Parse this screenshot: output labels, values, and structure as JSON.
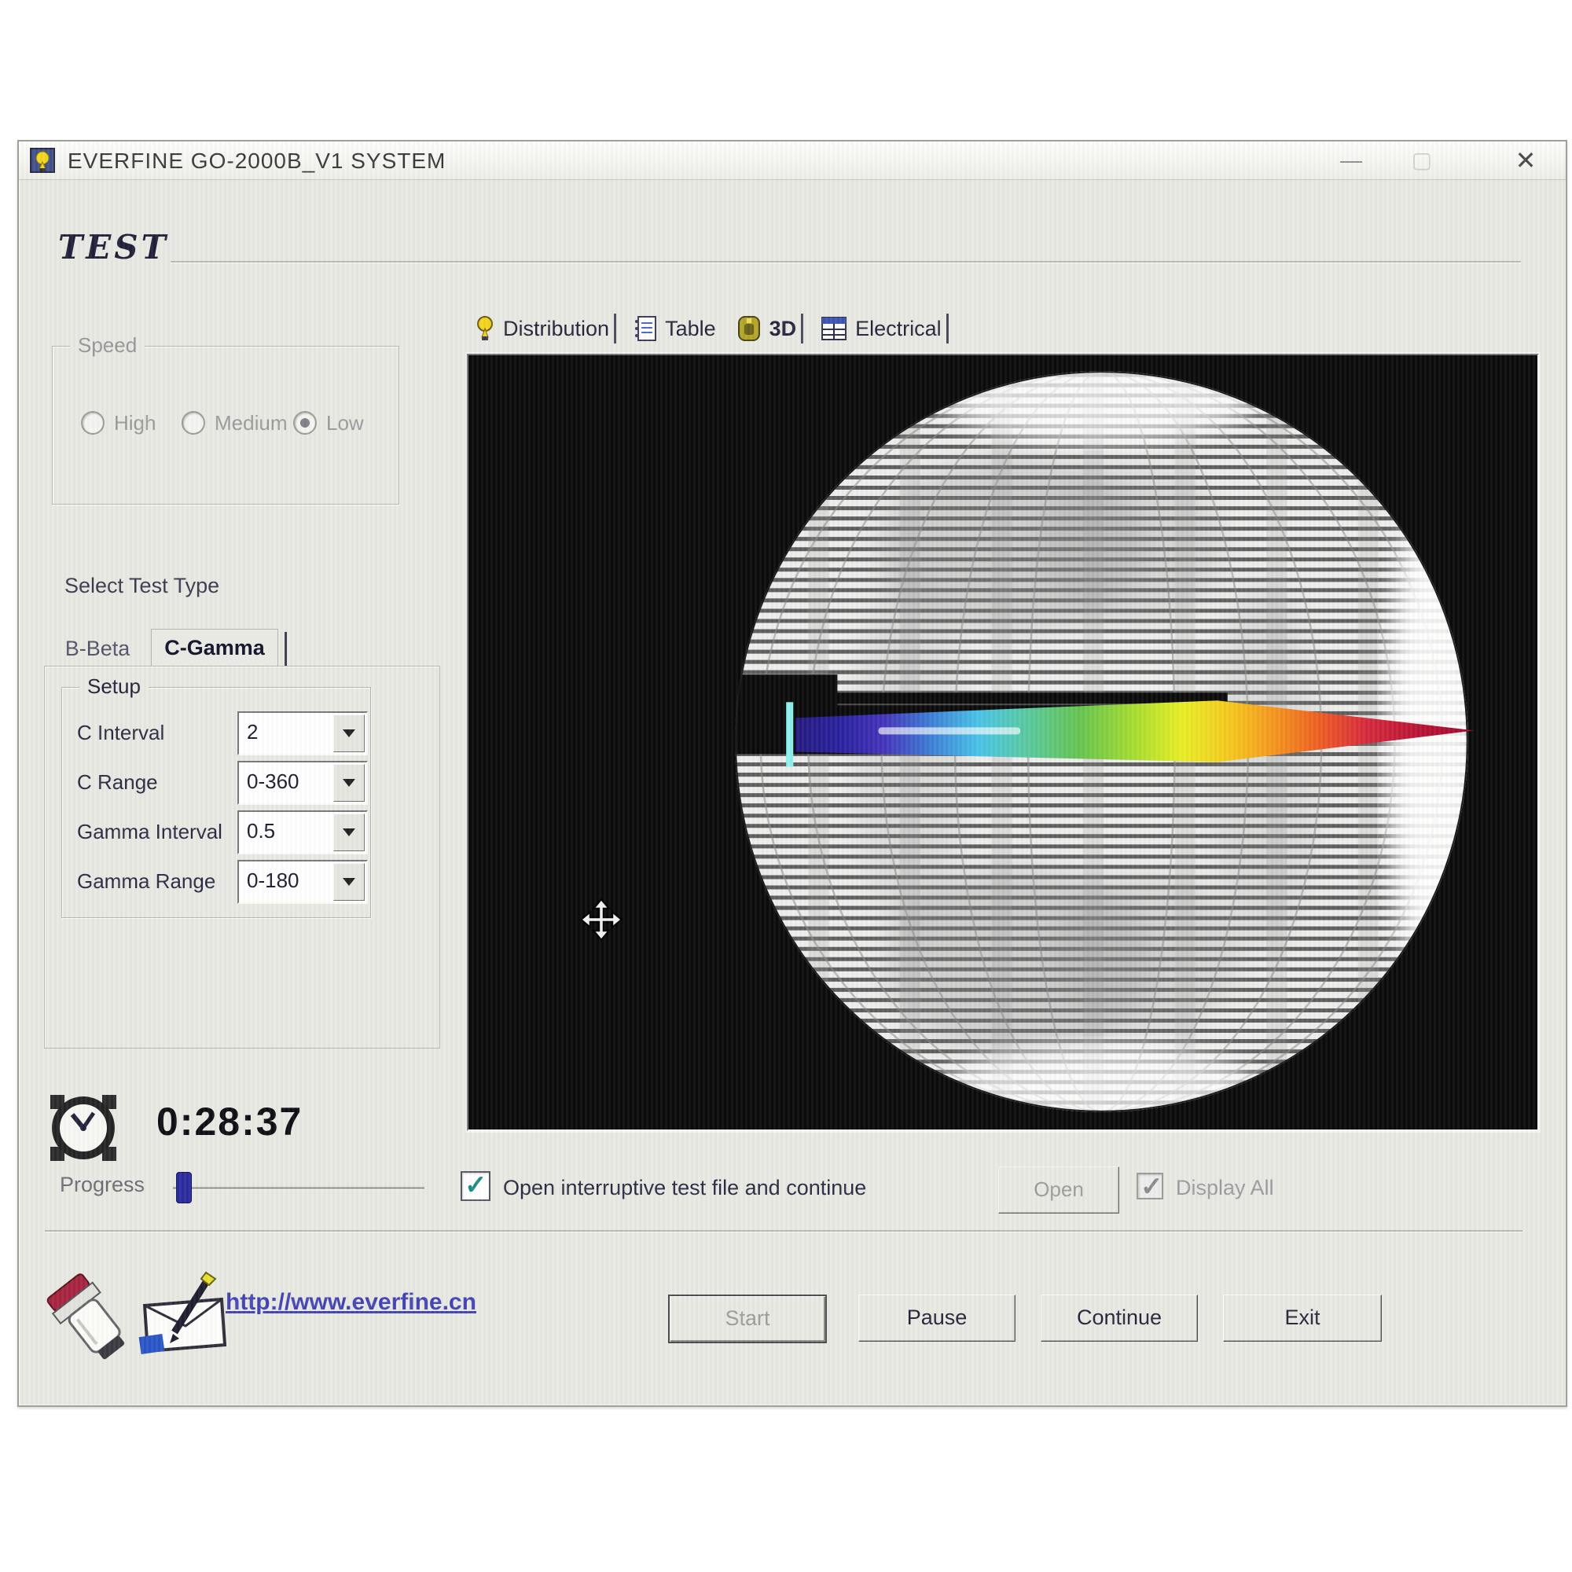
{
  "window": {
    "title": "EVERFINE GO-2000B_V1 SYSTEM",
    "controls": {
      "minimize": "—",
      "maximize": "▢",
      "close": "✕"
    }
  },
  "header": {
    "title": "TEST"
  },
  "speed": {
    "label": "Speed",
    "options": [
      {
        "label": "High",
        "selected": false
      },
      {
        "label": "Medium",
        "selected": false
      },
      {
        "label": "Low",
        "selected": true
      }
    ]
  },
  "test_type": {
    "label": "Select Test Type",
    "tabs": [
      {
        "label": "B-Beta",
        "active": false
      },
      {
        "label": "C-Gamma",
        "active": true
      }
    ]
  },
  "setup": {
    "label": "Setup",
    "fields": [
      {
        "label": "C Interval",
        "value": "2"
      },
      {
        "label": "C Range",
        "value": "0-360"
      },
      {
        "label": "Gamma Interval",
        "value": "0.5"
      },
      {
        "label": "Gamma Range",
        "value": "0-180"
      }
    ]
  },
  "view_tabs": [
    {
      "label": "Distribution",
      "icon": "bulb-icon"
    },
    {
      "label": "Table",
      "icon": "table-icon"
    },
    {
      "label": "3D",
      "icon": "3d-icon"
    },
    {
      "label": "Electrical",
      "icon": "electrical-icon"
    }
  ],
  "active_view": "3D",
  "timer": {
    "elapsed": "0:28:37"
  },
  "progress": {
    "label": "Progress",
    "percent": 3
  },
  "options_row": {
    "open_interruptive": {
      "label": "Open interruptive test file and continue",
      "checked": true
    },
    "open_button": "Open",
    "display_all": {
      "label": "Display All",
      "checked": true
    }
  },
  "footer": {
    "website": "http://www.everfine.cn",
    "buttons": [
      {
        "label": "Start",
        "disabled": true,
        "default": true
      },
      {
        "label": "Pause",
        "disabled": false
      },
      {
        "label": "Continue",
        "disabled": false
      },
      {
        "label": "Exit",
        "disabled": false
      }
    ]
  },
  "colors": {
    "window_bg": "#e9e9e3",
    "panel_bg": "#0b0b0c",
    "link": "#4444b4",
    "progress_thumb": "#2b2b9e",
    "beam_palette": [
      "#241a80",
      "#3d7fd6",
      "#49c3e8",
      "#66c44e",
      "#e8ee25",
      "#f59a1e",
      "#d62a3c",
      "#a00a2c"
    ]
  }
}
